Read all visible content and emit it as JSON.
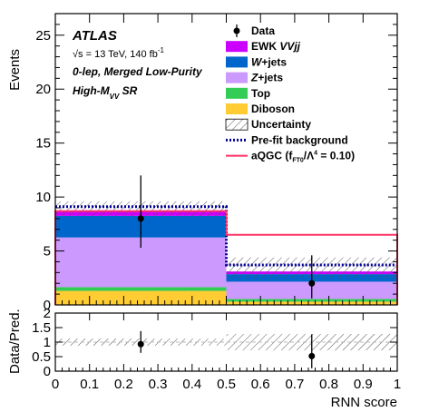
{
  "chart_data": {
    "type": "stacked-histogram",
    "x_bins": [
      [
        0,
        0.5
      ],
      [
        0.5,
        1.0
      ]
    ],
    "ylabel": "Events",
    "xlabel": "RNN score",
    "ylim": [
      0,
      27
    ],
    "yticks": [
      0,
      5,
      10,
      15,
      20,
      25
    ],
    "xticks": [
      0,
      0.1,
      0.2,
      0.3,
      0.4,
      0.5,
      0.6,
      0.7,
      0.8,
      0.9,
      1
    ],
    "annotations": {
      "experiment": "ATLAS",
      "energy_prefix": "√s = 13 TeV, 140 fb",
      "energy_sup": "-1",
      "region": "0-lep, Merged Low-Purity",
      "sr_main": "High-M",
      "sr_sub": "VV",
      "sr_suffix": " SR"
    },
    "stack_series": [
      {
        "name": "Diboson",
        "color": "#ffcc33",
        "values": [
          1.3,
          0.3
        ]
      },
      {
        "name": "Top",
        "color": "#33cc55",
        "values": [
          0.35,
          0.25
        ]
      },
      {
        "name": "Z+jets",
        "color": "#cc99ff",
        "values": [
          4.6,
          1.6
        ]
      },
      {
        "name": "W+jets",
        "color": "#0066cc",
        "values": [
          2.0,
          0.7
        ]
      },
      {
        "name": "EWK VVjj",
        "color": "#cc00ff",
        "values": [
          0.5,
          0.25
        ]
      }
    ],
    "uncertainty_band": {
      "name": "Uncertainty",
      "low": [
        8.2,
        2.5
      ],
      "high": [
        9.6,
        4.4
      ]
    },
    "prefit_background": {
      "name": "Pre-fit background",
      "color": "#000099",
      "values": [
        9.1,
        3.7
      ]
    },
    "signal": {
      "name": "aQGC",
      "label_prefix": "aQGC (f",
      "label_sub": "FT0",
      "label_mid": "/Λ",
      "label_sup": "4",
      "label_suffix": " = 0.10)",
      "color": "#ff3366",
      "values": [
        8.7,
        6.5
      ]
    },
    "data": {
      "name": "Data",
      "x": [
        0.25,
        0.75
      ],
      "y": [
        8,
        2
      ],
      "err_low": [
        2.7,
        1.4
      ],
      "err_high": [
        4.0,
        2.6
      ]
    },
    "legend_entries": [
      {
        "key": "data",
        "label": "Data"
      },
      {
        "key": "ewk",
        "label_pre": "EWK ",
        "label_italic": "VVjj",
        "color": "#cc00ff"
      },
      {
        "key": "wjets",
        "label_italic": "W",
        "label_post": "+jets",
        "color": "#0066cc"
      },
      {
        "key": "zjets",
        "label_italic": "Z",
        "label_post": "+jets",
        "color": "#cc99ff"
      },
      {
        "key": "top",
        "label_pre": "Top",
        "color": "#33cc55"
      },
      {
        "key": "diboson",
        "label_pre": "Diboson",
        "color": "#ffcc33"
      },
      {
        "key": "unc",
        "label_pre": "Uncertainty"
      },
      {
        "key": "prefit",
        "label_pre": "Pre-fit background"
      },
      {
        "key": "signal"
      }
    ],
    "ratio": {
      "ylabel": "Data/Pred.",
      "ylim": [
        0,
        2
      ],
      "yticks": [
        0,
        0.5,
        1,
        1.5,
        2
      ],
      "ytick_labels": [
        "0",
        "0.5",
        "1",
        "1.5",
        "2"
      ],
      "band_low": [
        0.88,
        0.72
      ],
      "band_high": [
        1.12,
        1.28
      ],
      "points": {
        "x": [
          0.25,
          0.75
        ],
        "y": [
          0.93,
          0.52
        ],
        "err_low": [
          0.3,
          0.42
        ],
        "err_high": [
          0.45,
          0.75
        ]
      }
    }
  }
}
